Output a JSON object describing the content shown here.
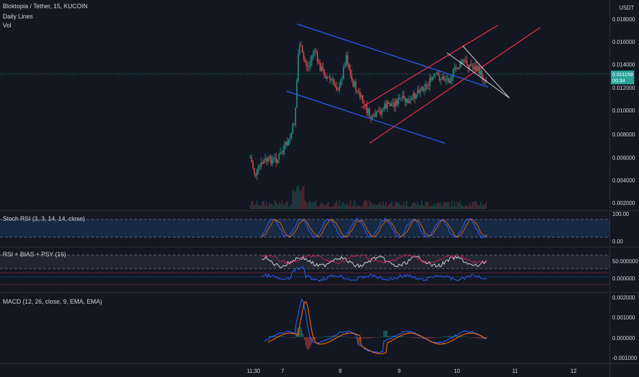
{
  "header": {
    "symbol_title": "Bloktopia / Tether, 15, KUCOIN",
    "indicator_1": "Daily Lines",
    "indicator_2": "Vol",
    "currency": "USDT"
  },
  "price_axis": {
    "ticks": [
      "0.018000",
      "0.016000",
      "0.014000",
      "0.012000",
      "0.010000",
      "0.008000",
      "0.006000",
      "0.004000",
      "0.002000"
    ],
    "last_price": "0.011159",
    "countdown": "00:34"
  },
  "stoch_rsi": {
    "label": "Stoch RSI (3, 3, 14, 14, close)",
    "ticks": [
      "100.00",
      "0.00"
    ]
  },
  "rsi_bias_psy": {
    "label": "RSI + BIAS + PSY (16)",
    "ticks": [
      "50.000000",
      "0.000000"
    ]
  },
  "macd": {
    "label": "MACD (12, 26, close, 9, EMA, EMA)",
    "ticks": [
      "0.002000",
      "0.001000",
      "0.000000",
      "-0.001000"
    ]
  },
  "time_axis": {
    "ticks": [
      "11:30",
      "7",
      "8",
      "9",
      "10",
      "11",
      "12"
    ]
  },
  "colors": {
    "background": "#131722",
    "up_candle": "#26a69a",
    "down_candle": "#ef5350",
    "price_tag": "#26a69a",
    "trendline_blue": "#2962ff",
    "channel_red": "#f23645",
    "wedge_white": "#d1d4dc",
    "stoch_band": "#1e3a5f"
  }
}
